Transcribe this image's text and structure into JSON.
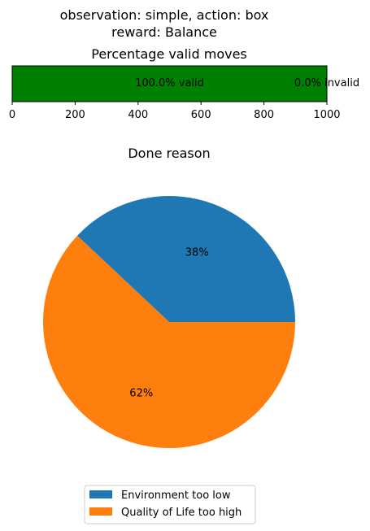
{
  "figure": {
    "suptitle_line1": "observation: simple, action: box",
    "suptitle_line2": "reward: Balance"
  },
  "chart_data": [
    {
      "type": "bar",
      "orientation": "horizontal",
      "stacked": true,
      "title": "Percentage valid moves",
      "xlim": [
        0,
        1000
      ],
      "xticks": [
        "0",
        "200",
        "400",
        "600",
        "800",
        "1000"
      ],
      "segments": [
        {
          "label": "100.0% valid",
          "value": 1000,
          "color": "#008000"
        },
        {
          "label": "0.0% invalid",
          "value": 0,
          "color": "#ff0000"
        }
      ]
    },
    {
      "type": "pie",
      "title": "Done reason",
      "slices": [
        {
          "name": "Environment too low",
          "value": 38,
          "label": "38%",
          "color": "#1f77b4"
        },
        {
          "name": "Quality of Life too high",
          "value": 62,
          "label": "62%",
          "color": "#ff7f0e"
        }
      ],
      "legend": "bottom"
    }
  ]
}
